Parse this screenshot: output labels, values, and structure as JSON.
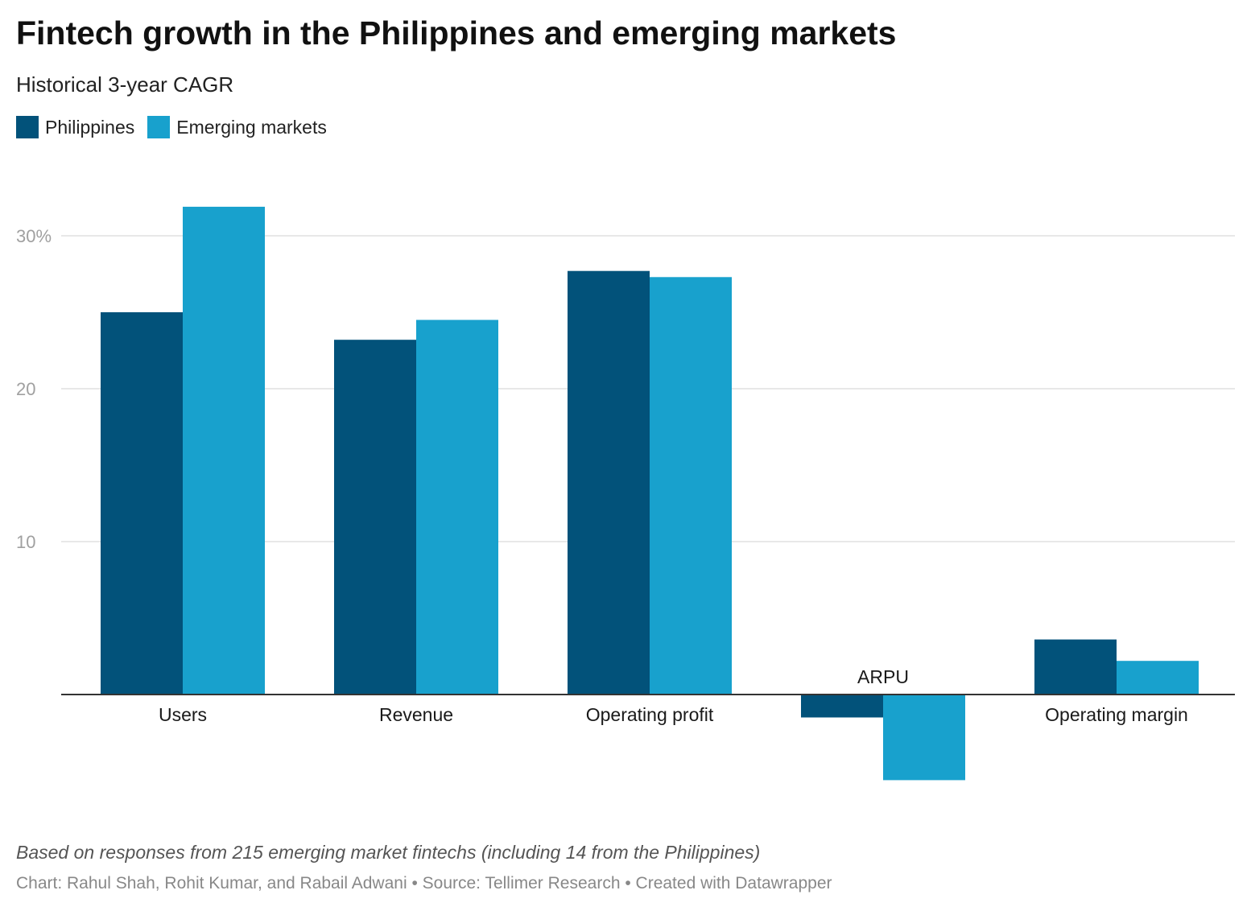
{
  "header": {
    "title": "Fintech growth in the Philippines and emerging markets",
    "subtitle": "Historical 3-year CAGR"
  },
  "legend": [
    {
      "name": "Philippines",
      "color": "#02527A"
    },
    {
      "name": "Emerging markets",
      "color": "#18A1CD"
    }
  ],
  "chart_data": {
    "type": "bar",
    "title": "Fintech growth in the Philippines and emerging markets",
    "subtitle": "Historical 3-year CAGR",
    "categories": [
      "Users",
      "Revenue",
      "Operating profit",
      "ARPU",
      "Operating margin"
    ],
    "series": [
      {
        "name": "Philippines",
        "color": "#02527A",
        "values": [
          25.0,
          23.2,
          27.7,
          -1.5,
          3.6
        ]
      },
      {
        "name": "Emerging markets",
        "color": "#18A1CD",
        "values": [
          31.9,
          24.5,
          27.3,
          -5.6,
          2.2
        ]
      }
    ],
    "y_ticks": [
      {
        "value": 10,
        "label": "10"
      },
      {
        "value": 20,
        "label": "20"
      },
      {
        "value": 30,
        "label": "30%"
      }
    ],
    "ylim": [
      -6,
      32
    ],
    "grid": true,
    "legend_position": "top-left"
  },
  "footer": {
    "notes": "Based on responses from 215 emerging market fintechs (including 14 from the Philippines)",
    "byline": "Chart: Rahul Shah, Rohit Kumar, and Rabail Adwani • Source: Tellimer Research • Created with Datawrapper"
  }
}
